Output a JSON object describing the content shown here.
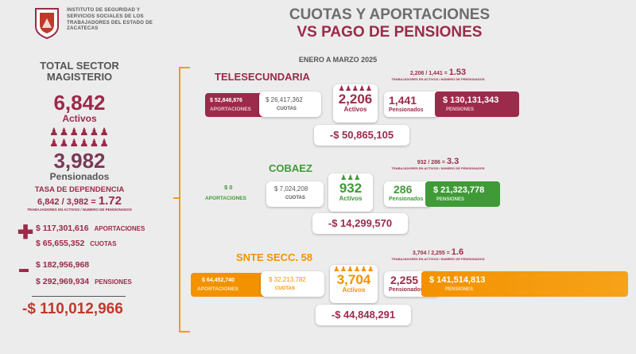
{
  "header": {
    "institute": "INSTITUTO DE SEGURIDAD Y SERVICIOS SOCIALES DE LOS TRABAJADORES DEL ESTADO DE ZACATECAS",
    "title_line1": "CUOTAS Y APORTACIONES",
    "title_line2": "VS PAGO DE PENSIONES",
    "period": "ENERO A MARZO 2025"
  },
  "left": {
    "title": "TOTAL SECTOR MAGISTERIO",
    "activos_value": "6,842",
    "activos_label": "Activos",
    "pensionados_value": "3,982",
    "pensionados_label": "Pensionados",
    "dep_title": "TASA DE DEPENDENCIA",
    "dep_formula": "6,842 / 3,982 =",
    "dep_ratio": "1.72",
    "dep_sub": "TRABAJADORES EN ACTIVOS / NUMERO DE PENSIONADOS",
    "aportaciones_value": "$ 117,301,616",
    "aportaciones_label": "APORTACIONES",
    "cuotas_value": "$ 65,655,352",
    "cuotas_label": "CUOTAS",
    "minus_value1": "$ 182,956,968",
    "pensiones_value": "$ 292,969,934",
    "pensiones_label": "PENSIONES",
    "total": "-$ 110,012,966"
  },
  "sections": [
    {
      "name": "TELESECUNDARIA",
      "ratio_formula": "2,206 / 1,441 =",
      "ratio": "1.53",
      "ratio_sub": "TRABAJADORES EN ACTIVOS / NUMERO DE PENSIONADOS",
      "aportaciones": "$ 52,848,876",
      "aportaciones_label": "APORTACIONES",
      "cuotas": "$ 26,417,362",
      "cuotas_label": "CUOTAS",
      "activos": "2,206",
      "activos_label": "Activos",
      "pensionados": "1,441",
      "pensionados_label": "Pensionados",
      "pensiones": "$ 130,131,343",
      "pensiones_label": "PENSIONES",
      "diff": "-$ 50,865,105",
      "color": "#9c2a4a"
    },
    {
      "name": "COBAEZ",
      "ratio_formula": "932 / 286 =",
      "ratio": "3.3",
      "ratio_sub": "TRABAJADORES EN ACTIVOS / NUMERO DE PENSIONADOS",
      "aportaciones": "$ 0",
      "aportaciones_label": "APORTACIONES",
      "cuotas": "$ 7,024,208",
      "cuotas_label": "CUOTAS",
      "activos": "932",
      "activos_label": "Activos",
      "pensionados": "286",
      "pensionados_label": "Pensionados",
      "pensiones": "$ 21,323,778",
      "pensiones_label": "PENSIONES",
      "diff": "-$ 14,299,570",
      "color": "#3f9a37"
    },
    {
      "name": "SNTE SECC. 58",
      "ratio_formula": "3,704 / 2,255 =",
      "ratio": "1.6",
      "ratio_sub": "TRABAJADORES EN ACTIVOS / NUMERO DE PENSIONADOS",
      "aportaciones": "$ 64,452,740",
      "aportaciones_label": "APORTACIONES",
      "cuotas": "$ 32,213,782",
      "cuotas_label": "CUOTAS",
      "activos": "3,704",
      "activos_label": "Activos",
      "pensionados": "2,255",
      "pensionados_label": "Pensionados",
      "pensiones": "$ 141,514,813",
      "pensiones_label": "PENSIONES",
      "diff": "-$ 44,848,291",
      "color": "#f39200"
    }
  ],
  "icons": {
    "person": "person-icon",
    "logo": "institute-logo"
  }
}
